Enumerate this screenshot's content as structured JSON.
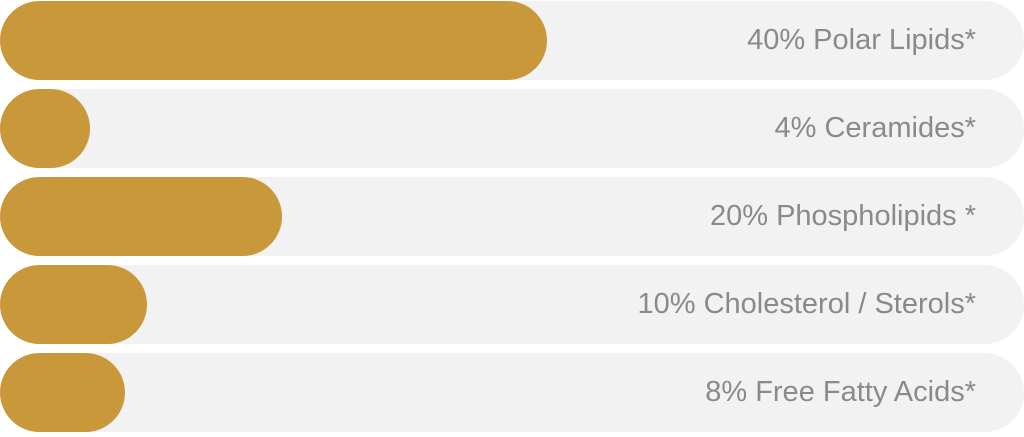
{
  "colors": {
    "bar_fill": "#c9983a",
    "track_fill": "#f2f2f2",
    "label_text": "#8a8a8a",
    "background": "#ffffff"
  },
  "chart_data": {
    "type": "bar",
    "orientation": "horizontal",
    "categories": [
      "Polar Lipids",
      "Ceramides",
      "Phospholipids",
      "Cholesterol / Sterols",
      "Free Fatty Acids"
    ],
    "values": [
      40,
      4,
      20,
      10,
      8
    ],
    "unit": "%",
    "labels": [
      "40% Polar Lipids*",
      "4% Ceramides*",
      "20% Phospholipids *",
      "10% Cholesterol / Sterols*",
      "8% Free Fatty Acids*"
    ],
    "bar_display_widths_pct": [
      53.4,
      8.8,
      27.5,
      14.4,
      12.2
    ],
    "title": "",
    "xlabel": "",
    "ylabel": "",
    "legend": "none",
    "grid": false,
    "label_position": "inside-right"
  }
}
